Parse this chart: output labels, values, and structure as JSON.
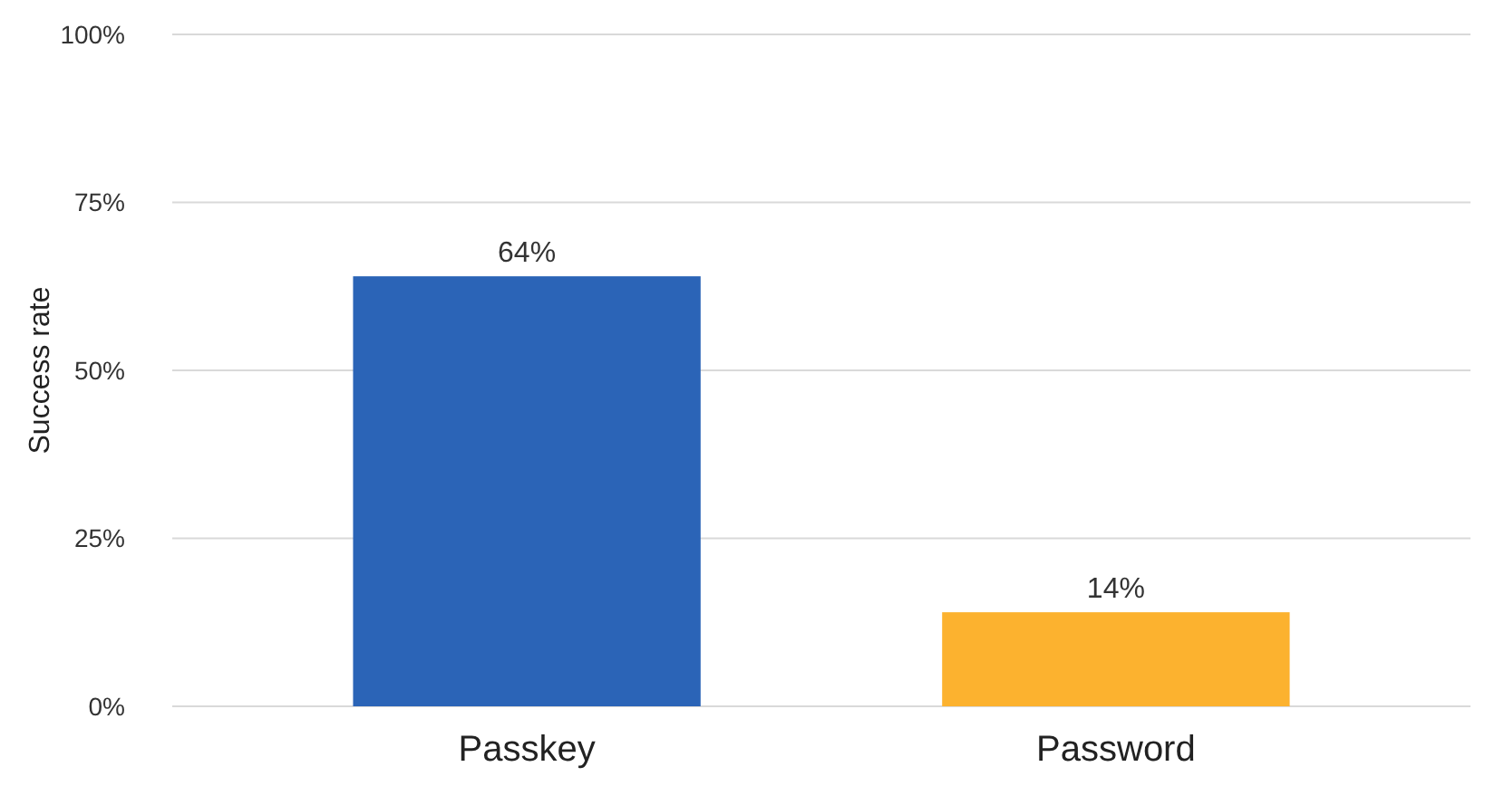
{
  "chart_data": {
    "type": "bar",
    "ylabel": "Success rate",
    "categories": [
      "Passkey",
      "Password"
    ],
    "values": [
      64,
      14
    ],
    "colors": [
      "#2b64b7",
      "#fcb22f"
    ],
    "value_labels": [
      "64%",
      "14%"
    ],
    "ylim": [
      0,
      100
    ],
    "yticks": [
      {
        "value": 0,
        "label": "0%"
      },
      {
        "value": 25,
        "label": "25%"
      },
      {
        "value": 50,
        "label": "50%"
      },
      {
        "value": 75,
        "label": "75%"
      },
      {
        "value": 100,
        "label": "100%"
      }
    ],
    "grid": "y"
  }
}
